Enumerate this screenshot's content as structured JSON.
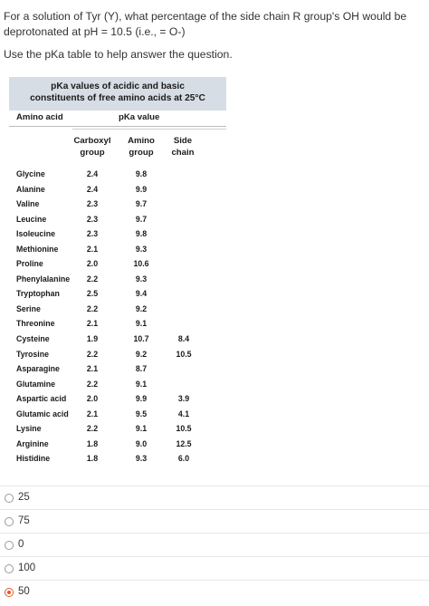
{
  "question": {
    "text": "For a solution of Tyr (Y), what percentage of the side chain R group's OH would be deprotonated at pH = 10.5 (i.e., = O-)",
    "hint": "Use the pKa table to help answer the question."
  },
  "table": {
    "title_line1": "pKa values of acidic and basic",
    "title_line2": "constituents of free amino acids at 25°C",
    "col_amino_acid": "Amino acid",
    "col_pka": "pKa value",
    "sub_carboxyl_1": "Carboxyl",
    "sub_carboxyl_2": "group",
    "sub_amino_1": "Amino",
    "sub_amino_2": "group",
    "sub_side_1": "Side",
    "sub_side_2": "chain",
    "rows": [
      {
        "name": "Glycine",
        "carboxyl": "2.4",
        "amino": "9.8",
        "side": ""
      },
      {
        "name": "Alanine",
        "carboxyl": "2.4",
        "amino": "9.9",
        "side": ""
      },
      {
        "name": "Valine",
        "carboxyl": "2.3",
        "amino": "9.7",
        "side": ""
      },
      {
        "name": "Leucine",
        "carboxyl": "2.3",
        "amino": "9.7",
        "side": ""
      },
      {
        "name": "Isoleucine",
        "carboxyl": "2.3",
        "amino": "9.8",
        "side": ""
      },
      {
        "name": "Methionine",
        "carboxyl": "2.1",
        "amino": "9.3",
        "side": ""
      },
      {
        "name": "Proline",
        "carboxyl": "2.0",
        "amino": "10.6",
        "side": ""
      },
      {
        "name": "Phenylalanine",
        "carboxyl": "2.2",
        "amino": "9.3",
        "side": ""
      },
      {
        "name": "Tryptophan",
        "carboxyl": "2.5",
        "amino": "9.4",
        "side": ""
      },
      {
        "name": "Serine",
        "carboxyl": "2.2",
        "amino": "9.2",
        "side": ""
      },
      {
        "name": "Threonine",
        "carboxyl": "2.1",
        "amino": "9.1",
        "side": ""
      },
      {
        "name": "Cysteine",
        "carboxyl": "1.9",
        "amino": "10.7",
        "side": "8.4"
      },
      {
        "name": "Tyrosine",
        "carboxyl": "2.2",
        "amino": "9.2",
        "side": "10.5"
      },
      {
        "name": "Asparagine",
        "carboxyl": "2.1",
        "amino": "8.7",
        "side": ""
      },
      {
        "name": "Glutamine",
        "carboxyl": "2.2",
        "amino": "9.1",
        "side": ""
      },
      {
        "name": "Aspartic acid",
        "carboxyl": "2.0",
        "amino": "9.9",
        "side": "3.9"
      },
      {
        "name": "Glutamic acid",
        "carboxyl": "2.1",
        "amino": "9.5",
        "side": "4.1"
      },
      {
        "name": "Lysine",
        "carboxyl": "2.2",
        "amino": "9.1",
        "side": "10.5"
      },
      {
        "name": "Arginine",
        "carboxyl": "1.8",
        "amino": "9.0",
        "side": "12.5"
      },
      {
        "name": "Histidine",
        "carboxyl": "1.8",
        "amino": "9.3",
        "side": "6.0"
      }
    ]
  },
  "choices": [
    {
      "label": "25",
      "selected": false
    },
    {
      "label": "75",
      "selected": false
    },
    {
      "label": "0",
      "selected": false
    },
    {
      "label": "100",
      "selected": false
    },
    {
      "label": "50",
      "selected": true
    }
  ],
  "colors": {
    "accent": "#e05a2a",
    "table_header_bg": "#d6dde4"
  }
}
